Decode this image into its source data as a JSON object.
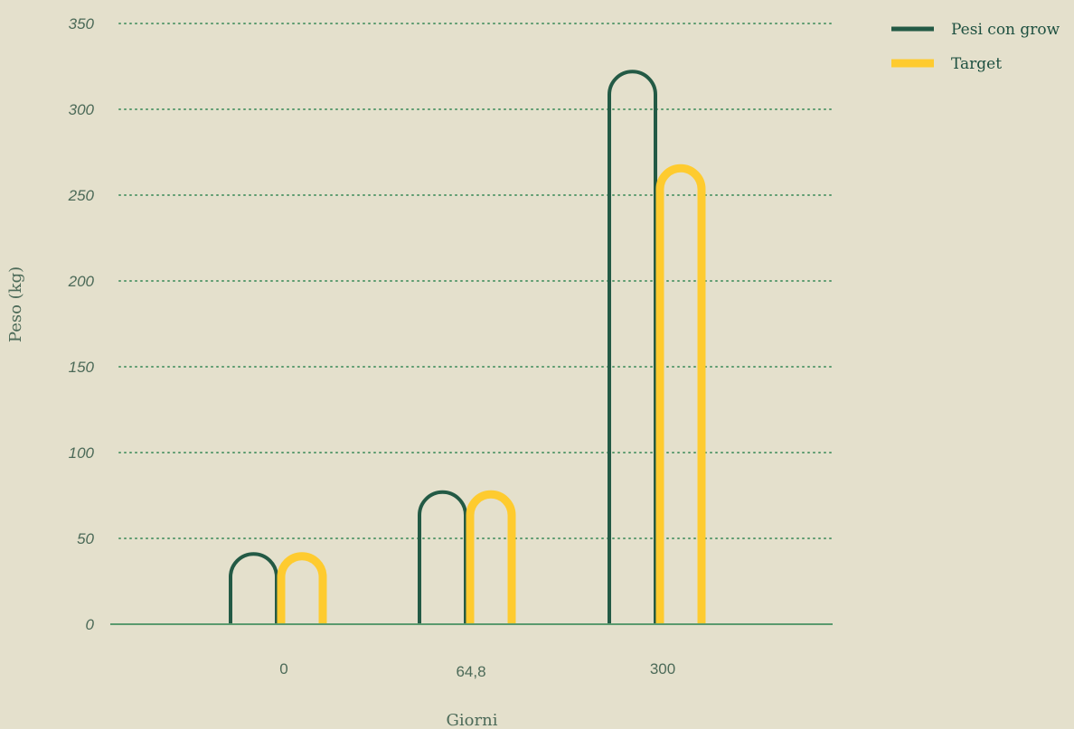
{
  "chart_data": {
    "type": "bar",
    "xlabel": "Giorni",
    "ylabel": "Peso (kg)",
    "categories": [
      "0",
      "64,8",
      "300"
    ],
    "series": [
      {
        "name": "Pesi con grow",
        "color": "#235a45",
        "values": [
          42,
          78,
          323
        ]
      },
      {
        "name": "Target",
        "color": "#fecb2f",
        "values": [
          42,
          78,
          268
        ]
      }
    ],
    "ylim": [
      0,
      350
    ],
    "yticks": [
      0,
      50,
      100,
      150,
      200,
      250,
      300,
      350
    ],
    "grid": "dotted horizontal",
    "legend_position": "top-right",
    "colors": {
      "background": "#e4e0cc",
      "grid": "#5a9a6e",
      "axis": "#5a9a6e",
      "text": "#4c6a58"
    }
  }
}
